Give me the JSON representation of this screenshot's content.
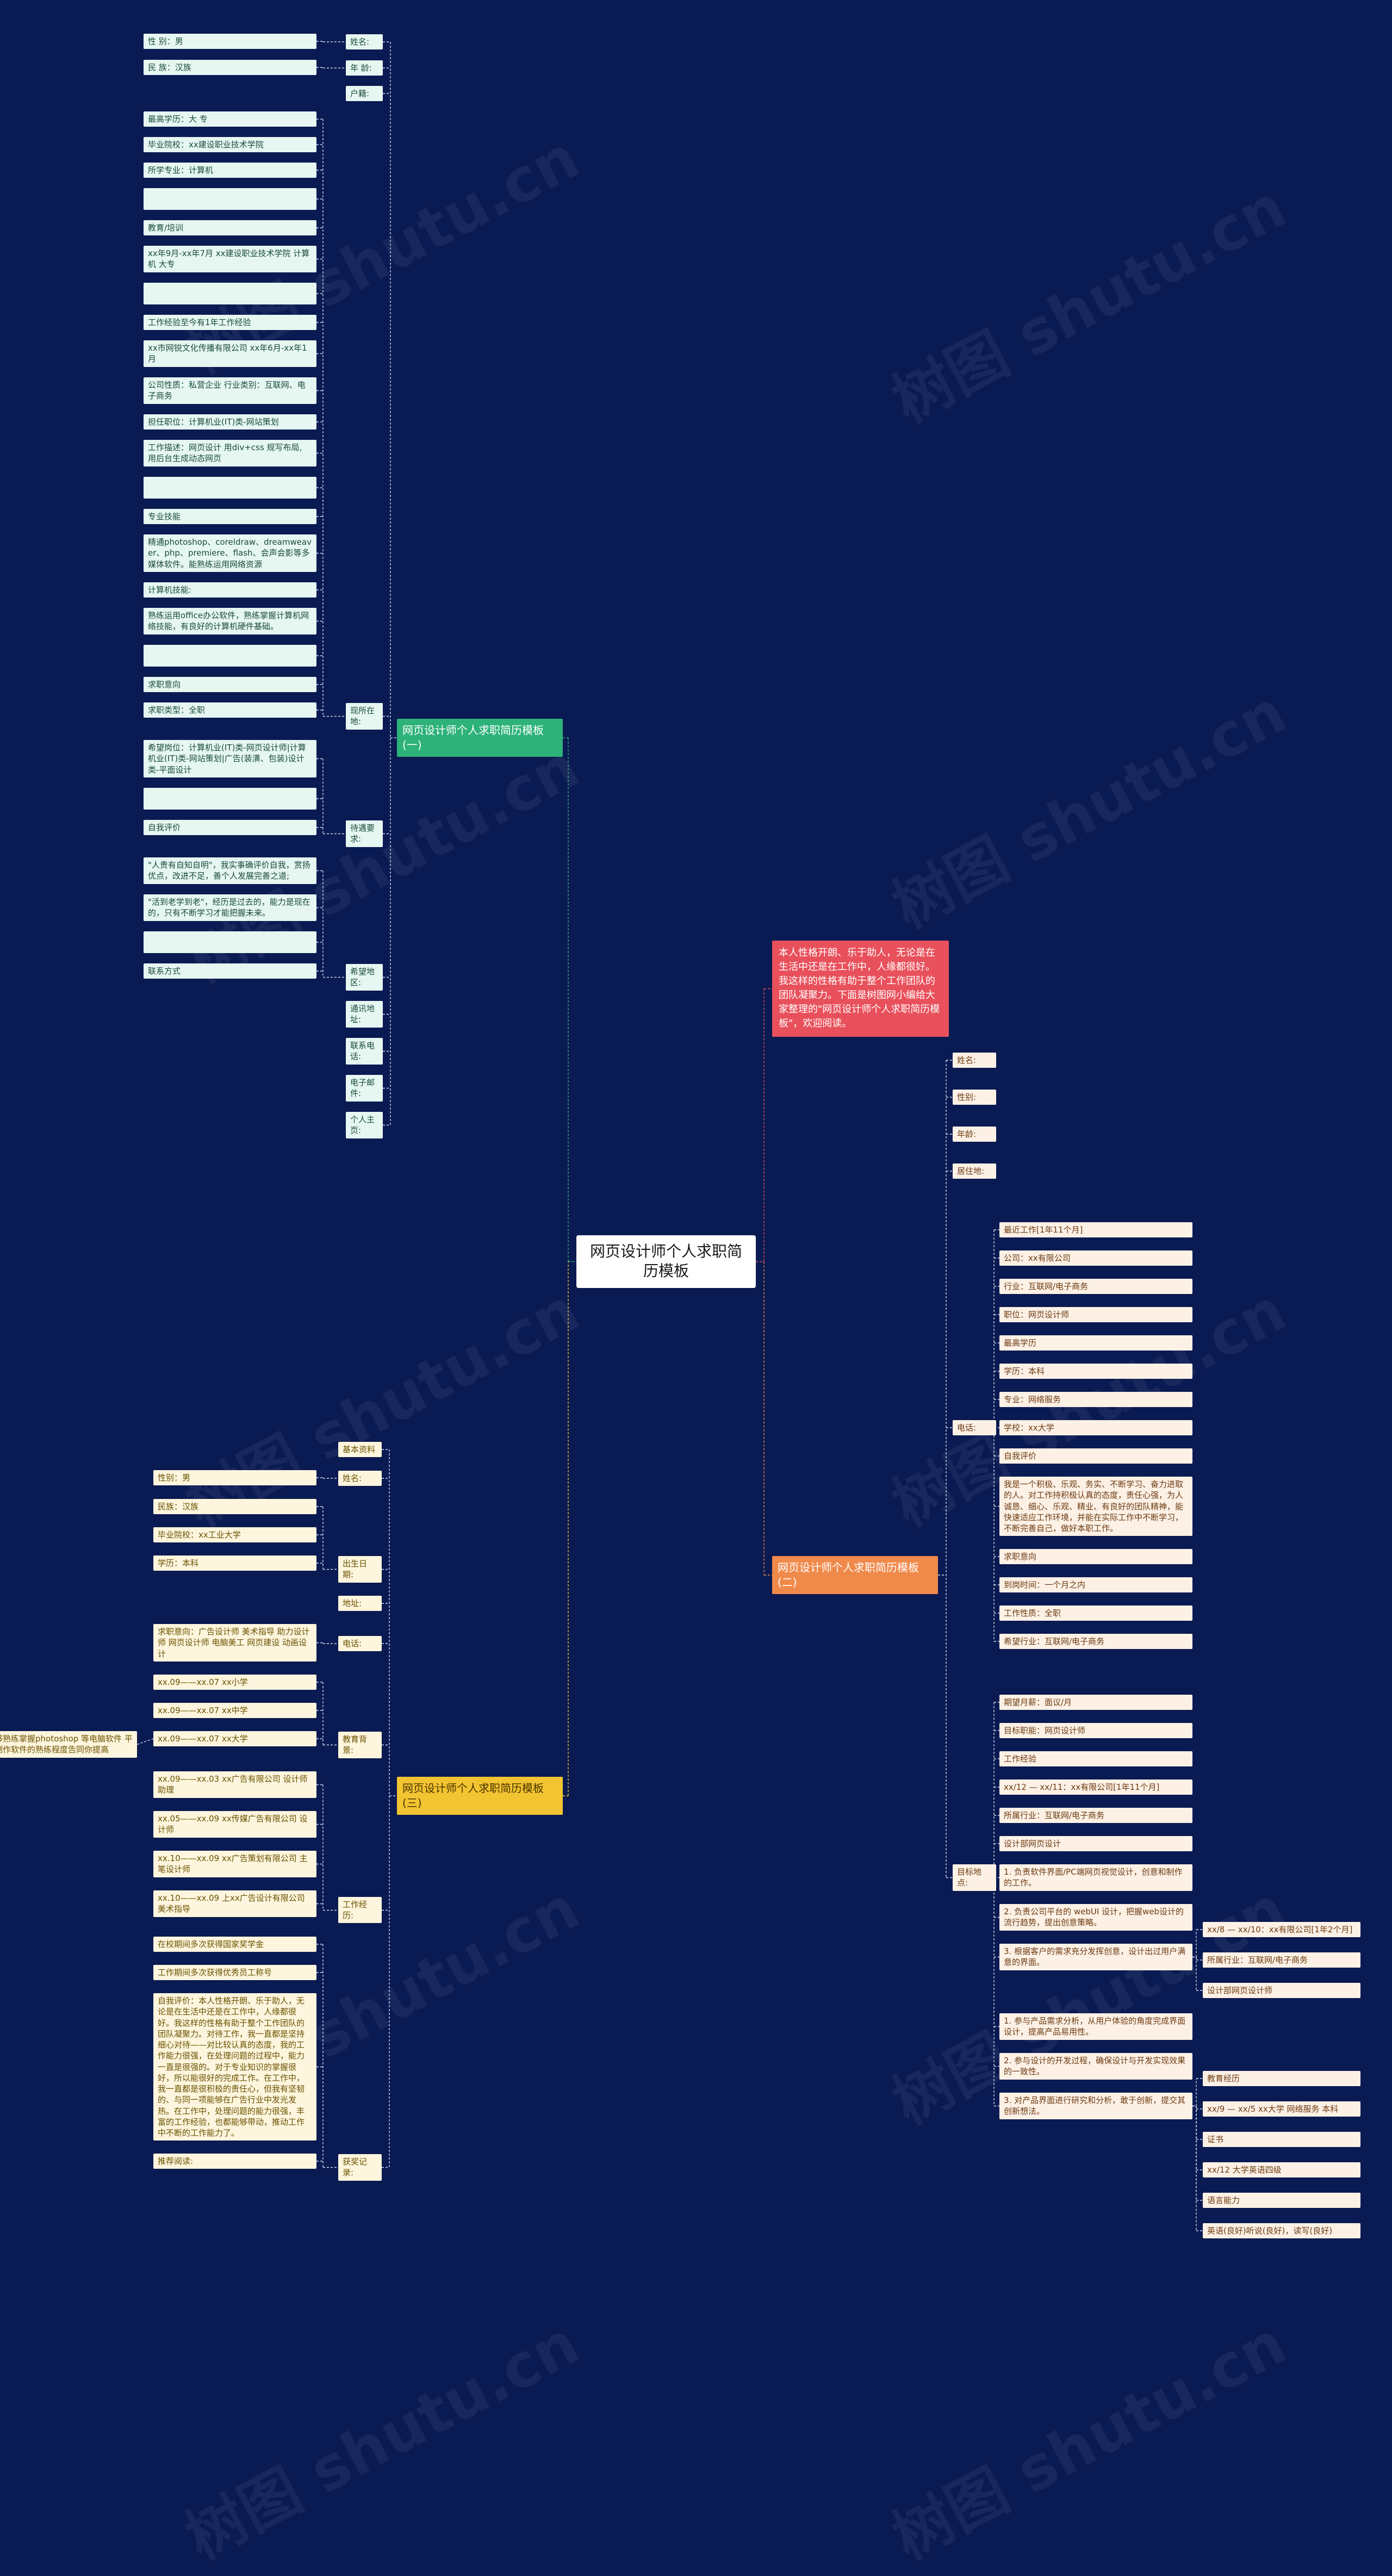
{
  "root": "网页设计师个人求职简历模板",
  "intro": "本人性格开朗、乐于助人，无论是在生活中还是在工作中，人缘都很好。我这样的性格有助于整个工作团队的团队凝聚力。下面是树图网小编给大家整理的\"网页设计师个人求职简历模板\"，欢迎阅读。",
  "branch1": {
    "label": "网页设计师个人求职简历模板(一)",
    "items": [
      {
        "label": "姓名:",
        "children": [
          "性 别：男"
        ]
      },
      {
        "label": "年 龄:",
        "children": [
          "民 族：汉族"
        ]
      },
      {
        "label": "户籍:",
        "children": []
      },
      {
        "label": "现所在地:",
        "children": [
          "最高学历：大 专",
          "毕业院校：xx建设职业技术学院",
          "所学专业：计算机",
          "",
          "教育/培训",
          "xx年9月-xx年7月 xx建设职业技术学院 计算机 大专",
          "",
          "工作经验至今有1年工作经验",
          "xx市网锐文化传播有限公司 xx年6月-xx年1月",
          "公司性质：私营企业 行业类别：互联网、电子商务",
          "担任职位：计算机业(IT)类-网站策划",
          "工作描述：网页设计 用div+css 规写布局, 用后台生成动态网页",
          "",
          "专业技能",
          "精通photoshop、coreldraw、dreamweaver、php、premiere、flash、会声会影等多媒体软件。能熟练运用网络资源",
          "计算机技能:",
          "熟练运用office办公软件，熟练掌握计算机网络技能，有良好的计算机硬件基础。",
          "",
          "求职意向",
          "求职类型：全职"
        ]
      },
      {
        "label": "待遇要求:",
        "children": [
          "希望岗位：计算机业(IT)类-网页设计师|计算机业(IT)类-网站策划|广告(装潢、包装)设计类-平面设计",
          "",
          "自我评价"
        ]
      },
      {
        "label": "希望地区:",
        "children": [
          "\"人贵有自知自明\"，我实事确评价自我，赏扬优点，改进不足，善个人发展完善之道;",
          "\"活到老学到老\"，经历是过去的，能力是现在的，只有不断学习才能把握未来。",
          "",
          "联系方式"
        ]
      },
      {
        "label": "通讯地址:",
        "children": []
      },
      {
        "label": "联系电话:",
        "children": []
      },
      {
        "label": "电子邮件:",
        "children": []
      },
      {
        "label": "个人主页:",
        "children": []
      }
    ]
  },
  "branch2": {
    "label": "网页设计师个人求职简历模板(二)",
    "items": [
      {
        "label": "姓名:",
        "children": []
      },
      {
        "label": "性别:",
        "children": []
      },
      {
        "label": "年龄:",
        "children": []
      },
      {
        "label": "居住地:",
        "children": []
      },
      {
        "label": "电话:",
        "children": [
          "最近工作[1年11个月]",
          "公司：xx有限公司",
          "行业：互联网/电子商务",
          "职位：网页设计师",
          "最高学历",
          "学历：本科",
          "专业：网络服务",
          "学校：xx大学",
          "自我评价",
          "我是一个积极、乐观、务实、不断学习、奋力进取的人。对工作持积极认真的态度，责任心强，为人诚恳、细心、乐观、精业、有良好的团队精神，能快速适应工作环境，并能在实际工作中不断学习，不断完善自己，做好本职工作。",
          "求职意向",
          "到岗时间：一个月之内",
          "工作性质：全职",
          "希望行业：互联网/电子商务"
        ]
      },
      {
        "label": "目标地点:",
        "children": [
          {
            "label": "期望月薪：面议/月"
          },
          {
            "label": "目标职能：网页设计师"
          },
          {
            "label": "工作经验"
          },
          {
            "label": "xx/12 — xx/11：xx有限公司[1年11个月]"
          },
          {
            "label": "所属行业：互联网/电子商务"
          },
          {
            "label": "设计部网页设计"
          },
          {
            "label": "1. 负责软件界面/PC端网页视觉设计，创意和制作的工作。"
          },
          {
            "label": "2. 负责公司平台的 webUI 设计，把握web设计的流行趋势，提出创意策略。"
          },
          {
            "label": "3. 根据客户的需求充分发挥创意，设计出过用户满意的界面。",
            "children": [
              "xx/8 — xx/10：xx有限公司[1年2个月]",
              "所属行业：互联网/电子商务",
              "设计部网页设计师"
            ]
          },
          {
            "label": "1. 参与产品需求分析，从用户体验的角度完成界面设计，提高产品易用性。"
          },
          {
            "label": "2. 参与设计的开发过程，确保设计与开发实现效果的一致性。"
          },
          {
            "label": "3. 对产品界面进行研究和分析，敢于创新，提交其创新想法。",
            "children": [
              "教育经历",
              "xx/9 — xx/5 xx大学 网络服务 本科",
              "证书",
              "xx/12 大学英语四级",
              "语言能力",
              "英语(良好)听说(良好)，读写(良好)"
            ]
          }
        ]
      }
    ]
  },
  "branch3": {
    "label": "网页设计师个人求职简历模板(三)",
    "items": [
      {
        "label": "基本资料",
        "children": []
      },
      {
        "label": "姓名:",
        "children": [
          "性别：男"
        ]
      },
      {
        "label": "出生日期:",
        "children": [
          "民族：汉族",
          "毕业院校：xx工业大学",
          "学历：本科"
        ]
      },
      {
        "label": "地址:",
        "children": []
      },
      {
        "label": "电话:",
        "children": [
          "求职意向：广告设计师 美术指导 助力设计师 网页设计师 电脑美工 网页建设 动画设计"
        ]
      },
      {
        "label": "教育背景:",
        "children": [
          "xx.09——xx.07 xx小学",
          "xx.09——xx.07 xx中学",
          {
            "label": "xx.09——xx.07 xx大学",
            "children": [
              "职业技能：能够熟练掌握photoshop 等电脑软件 平面设计和网页制作软件的熟练程度告同你提高"
            ]
          }
        ]
      },
      {
        "label": "工作经历:",
        "children": [
          "xx.09——xx.03 xx广告有限公司 设计师助理",
          "xx.05——xx.09 xx传媒广告有限公司 设计师",
          "xx.10——xx.09 xx广告策划有限公司 主笔设计师",
          "xx.10——xx.09 上xx广告设计有限公司 美术指导"
        ]
      },
      {
        "label": "获奖记录:",
        "children": [
          "在校期间多次获得国家奖学金",
          "工作期间多次获得优秀员工称号",
          "自我评价：本人性格开朗、乐于助人，无论是在生活中还是在工作中，人缘都很好。我这样的性格有助于整个工作团队的团队凝聚力。对待工作，我一直都是坚持细心对待——对比较认真的态度，我的工作能力很强，在处理问题的过程中，能力一直是很强的。对于专业知识的掌握很好，所以能很好的完成工作。在工作中，我一直都是很积极的责任心，但我有坚韧的、与同一项能够在广告行业中发光发热。在工作中，处理问题的能力很强，丰富的工作经验，也都能够带动，推动工作中不断的工作能力了。",
          "推荐阅读:"
        ]
      }
    ]
  },
  "watermark": "树图 shutu.cn",
  "colors": {
    "bg": "#0a1a52",
    "line": "#cfd6ea",
    "b1": "#2db27a",
    "b2": "#f08a4b",
    "b3": "#f2c431",
    "intro": "#e8505b"
  }
}
